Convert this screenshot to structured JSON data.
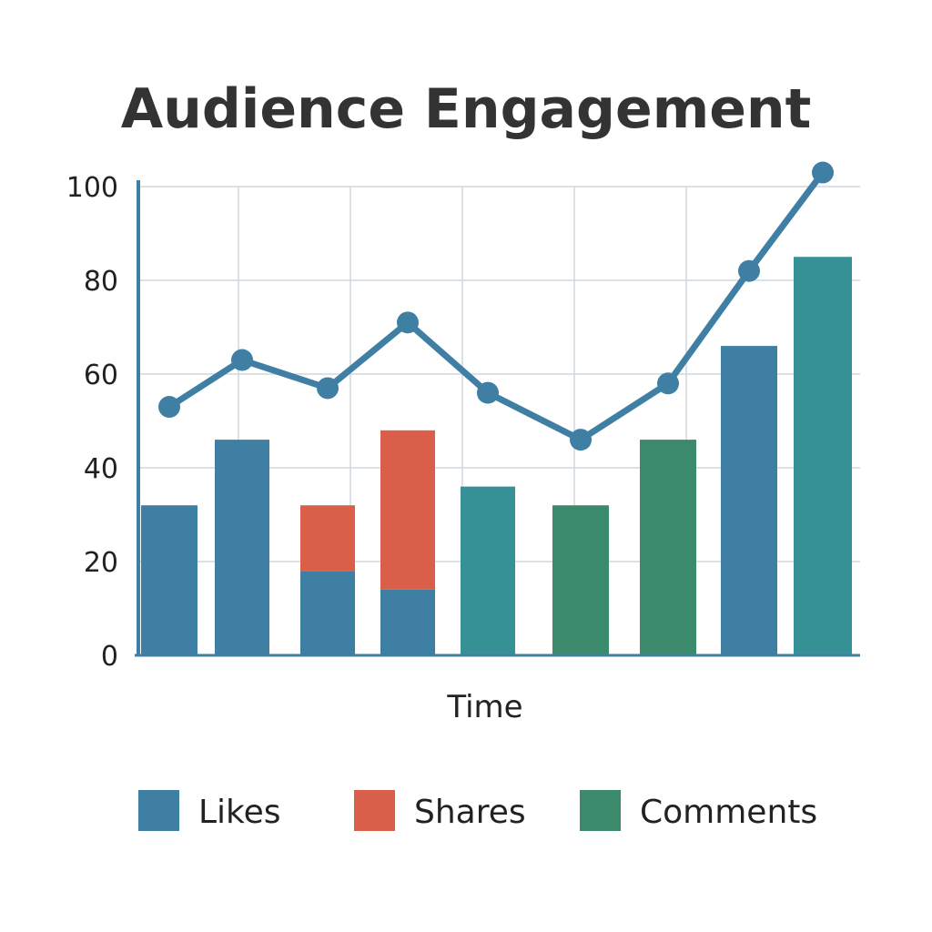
{
  "chart_data": {
    "type": "bar",
    "title": "Audience Engagement",
    "xlabel": "Time",
    "ylabel": "",
    "ylim": [
      0,
      100
    ],
    "yticks": [
      0,
      20,
      40,
      60,
      80,
      100
    ],
    "grid": true,
    "legend_position": "bottom",
    "colors": {
      "likes": "#3f7fa3",
      "shares": "#d95f4b",
      "comments_teal": "#369196",
      "comments_green": "#3c8a6c",
      "line": "#3f7fa3",
      "axis": "#3f7fa3"
    },
    "bars": [
      {
        "segments": [
          {
            "series": "Likes",
            "value": 32,
            "color": "likes"
          }
        ]
      },
      {
        "segments": [
          {
            "series": "Likes",
            "value": 46,
            "color": "likes"
          }
        ]
      },
      {
        "segments": [
          {
            "series": "Likes",
            "value": 18,
            "color": "likes"
          },
          {
            "series": "Shares",
            "value": 14,
            "color": "shares"
          }
        ]
      },
      {
        "segments": [
          {
            "series": "Likes",
            "value": 14,
            "color": "likes"
          },
          {
            "series": "Shares",
            "value": 34,
            "color": "shares"
          }
        ]
      },
      {
        "segments": [
          {
            "series": "Comments",
            "value": 36,
            "color": "comments_teal"
          }
        ]
      },
      {
        "segments": [
          {
            "series": "Comments",
            "value": 32,
            "color": "comments_green"
          }
        ]
      },
      {
        "segments": [
          {
            "series": "Comments",
            "value": 46,
            "color": "comments_green"
          }
        ]
      },
      {
        "segments": [
          {
            "series": "Likes",
            "value": 66,
            "color": "likes"
          }
        ]
      },
      {
        "segments": [
          {
            "series": "Comments",
            "value": 85,
            "color": "comments_teal"
          }
        ]
      }
    ],
    "line": {
      "values": [
        53,
        63,
        57,
        71,
        56,
        46,
        58,
        82,
        103
      ]
    },
    "legend": [
      {
        "label": "Likes",
        "color": "likes"
      },
      {
        "label": "Shares",
        "color": "shares"
      },
      {
        "label": "Comments",
        "color": "comments_green"
      }
    ]
  }
}
